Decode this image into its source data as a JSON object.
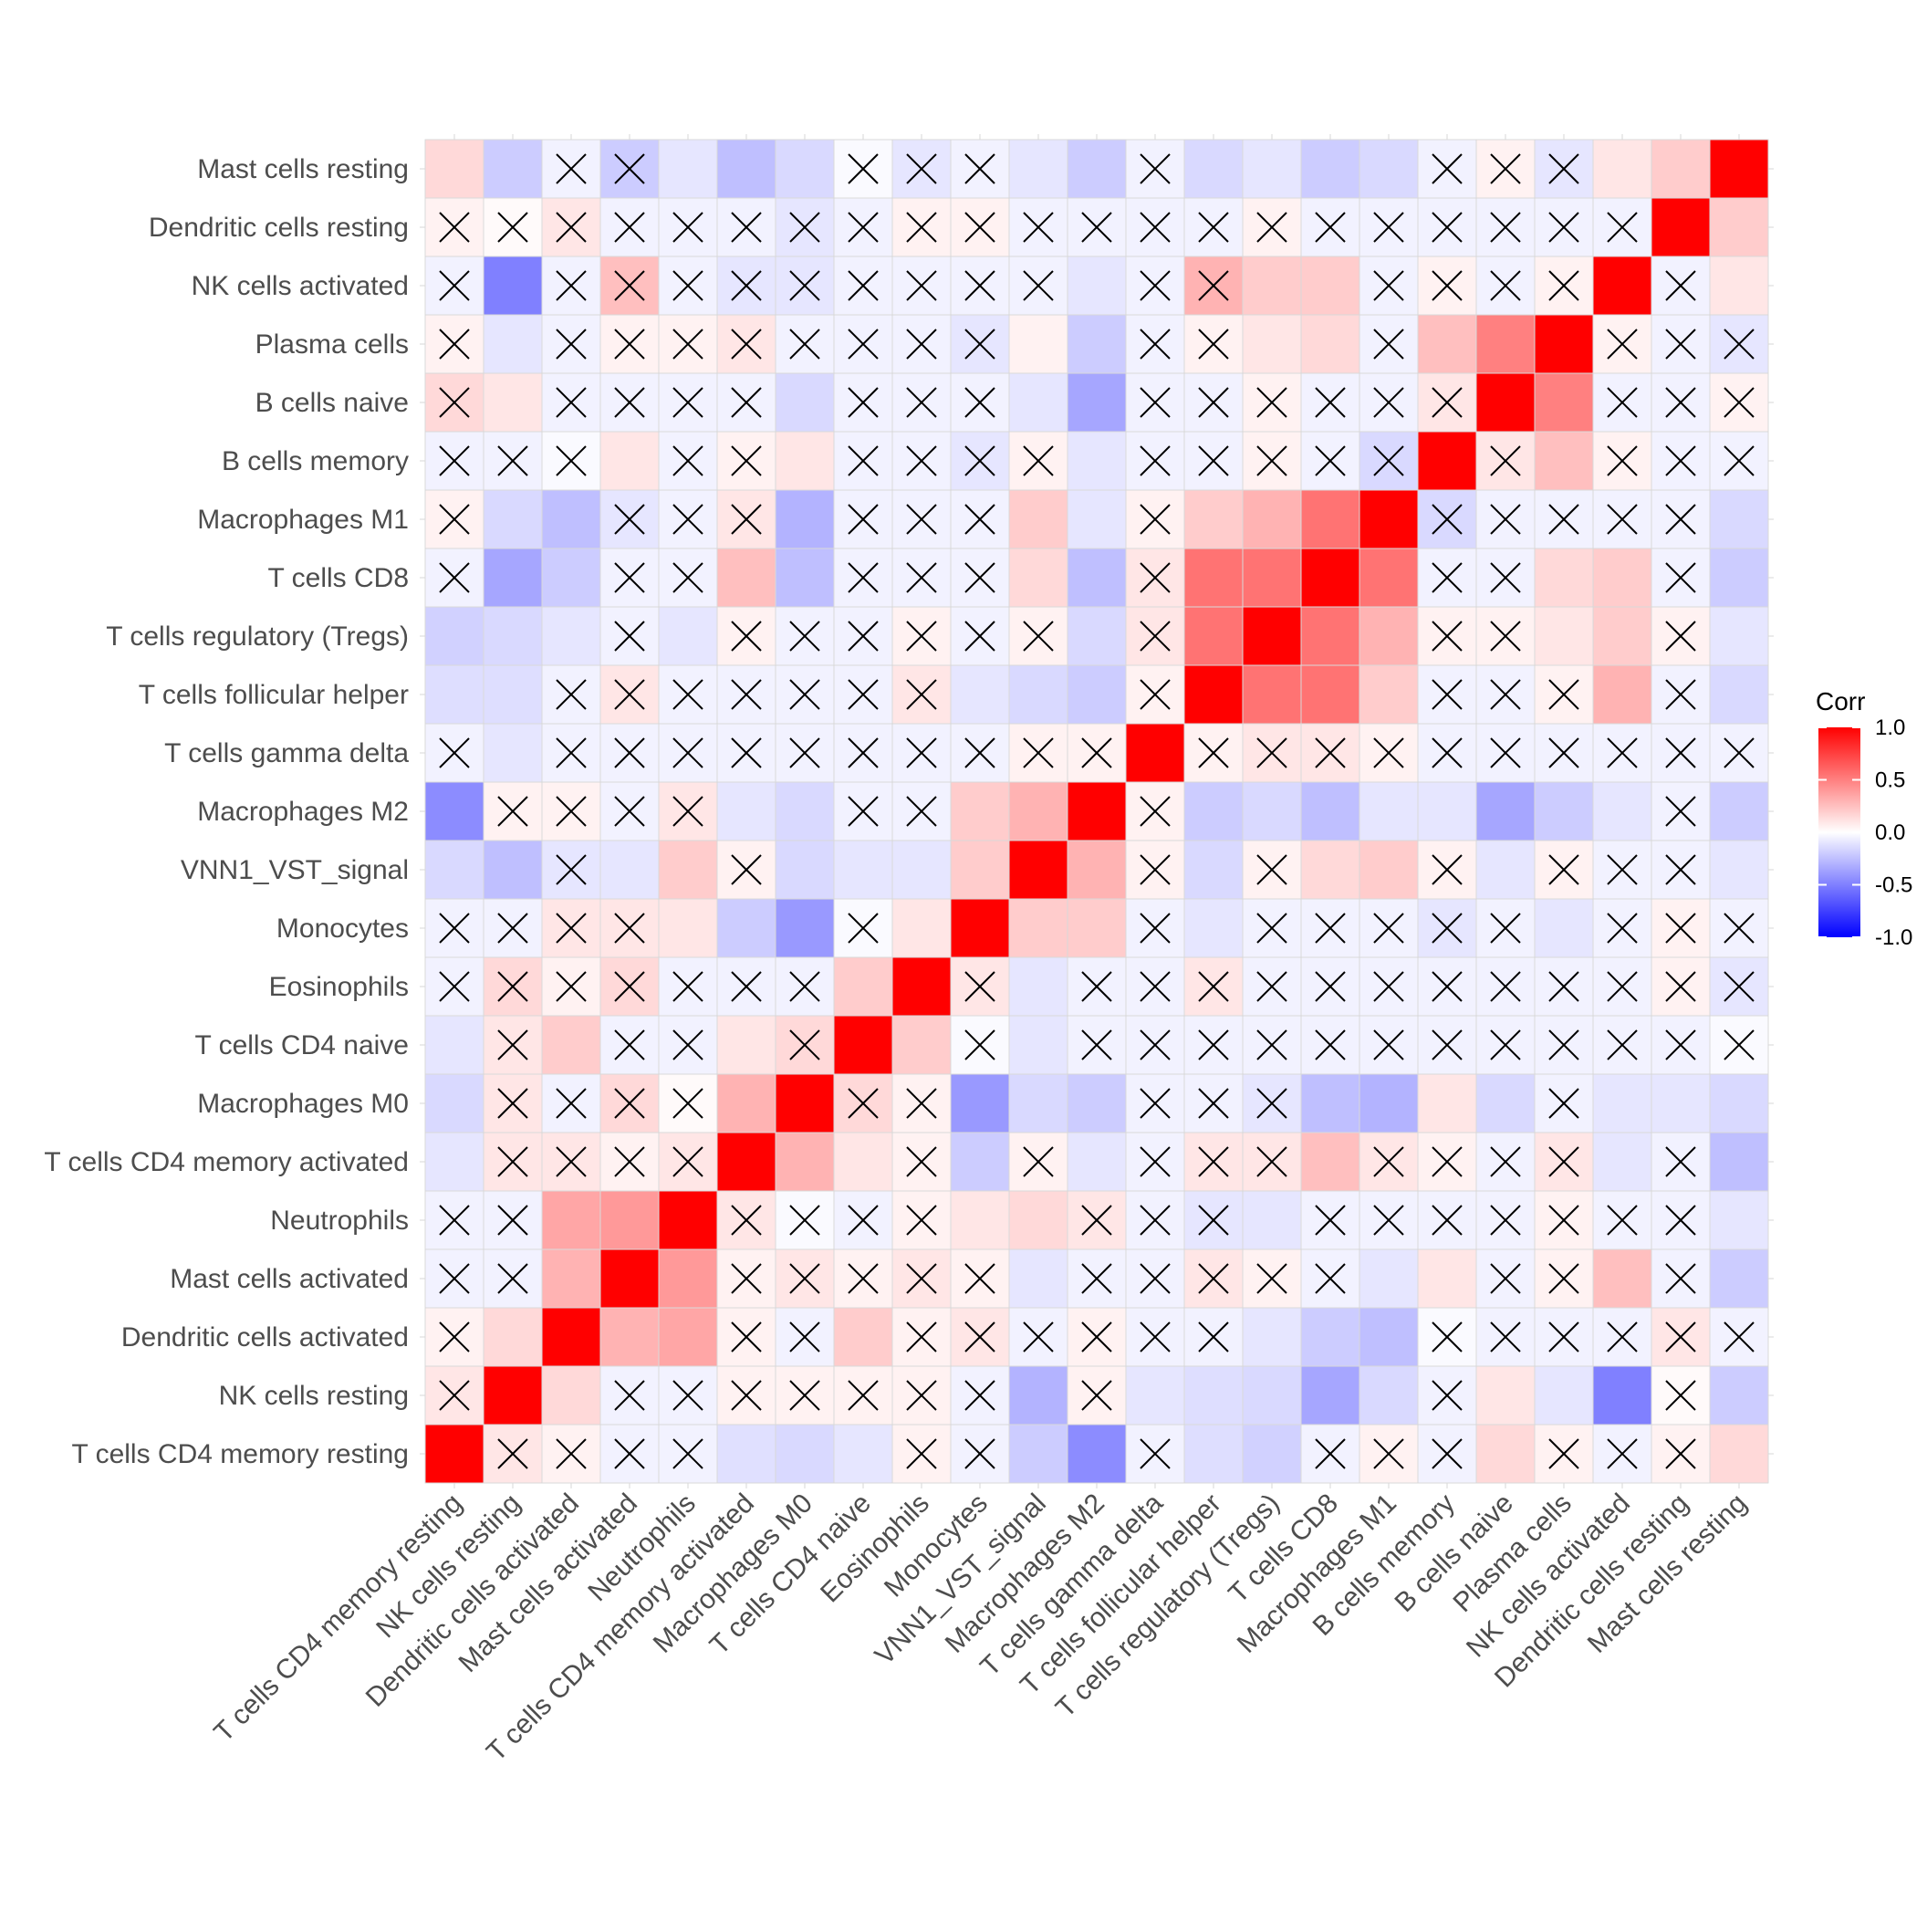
{
  "chart_data": {
    "type": "heatmap",
    "subtype": "lower-upper correlation matrix with insignificance crosses",
    "variables": [
      "T cells CD4 memory resting",
      "NK cells resting",
      "Dendritic cells activated",
      "Mast cells activated",
      "Neutrophils",
      "T cells CD4 memory activated",
      "Macrophages M0",
      "T cells CD4 naive",
      "Eosinophils",
      "Monocytes",
      "VNN1_VST_signal",
      "Macrophages M2",
      "T cells gamma delta",
      "T cells follicular helper",
      "T cells regulatory (Tregs)",
      "T cells CD8",
      "Macrophages M1",
      "B cells memory",
      "B cells naive",
      "Plasma cells",
      "NK cells activated",
      "Dendritic cells resting",
      "Mast cells resting"
    ],
    "matrix": [
      [
        1.0,
        0.1,
        0.05,
        -0.05,
        -0.05,
        -0.12,
        -0.15,
        -0.1,
        0.05,
        -0.05,
        -0.2,
        -0.45,
        -0.05,
        -0.13,
        -0.18,
        -0.05,
        0.05,
        -0.05,
        0.15,
        0.05,
        -0.05,
        0.05,
        0.15
      ],
      [
        0.1,
        1.0,
        0.15,
        -0.05,
        -0.05,
        0.05,
        0.05,
        0.05,
        0.05,
        -0.05,
        -0.3,
        0.05,
        -0.1,
        -0.13,
        -0.15,
        -0.35,
        -0.15,
        -0.05,
        0.1,
        -0.1,
        -0.5,
        0.02,
        -0.2
      ],
      [
        0.05,
        0.15,
        1.0,
        0.3,
        0.35,
        0.05,
        -0.05,
        0.2,
        0.05,
        0.1,
        -0.05,
        0.05,
        -0.05,
        -0.05,
        -0.1,
        -0.2,
        -0.25,
        -0.02,
        -0.05,
        -0.05,
        -0.05,
        0.1,
        -0.05
      ],
      [
        -0.05,
        -0.05,
        0.3,
        1.0,
        0.4,
        0.05,
        0.1,
        0.05,
        0.1,
        0.05,
        -0.1,
        -0.05,
        -0.05,
        0.1,
        0.05,
        -0.05,
        -0.1,
        0.1,
        -0.05,
        0.05,
        0.25,
        -0.05,
        -0.2
      ],
      [
        -0.05,
        -0.05,
        0.35,
        0.4,
        1.0,
        0.1,
        -0.02,
        -0.05,
        0.05,
        0.1,
        0.15,
        0.1,
        -0.05,
        -0.1,
        -0.1,
        -0.05,
        -0.05,
        -0.05,
        -0.05,
        0.05,
        -0.05,
        -0.05,
        -0.1
      ],
      [
        -0.1,
        0.1,
        0.1,
        0.05,
        0.1,
        1.0,
        0.3,
        0.1,
        0.05,
        -0.2,
        0.05,
        -0.1,
        -0.05,
        0.1,
        0.1,
        0.25,
        0.1,
        0.05,
        -0.05,
        0.1,
        -0.1,
        -0.05,
        -0.25
      ],
      [
        -0.15,
        0.1,
        -0.05,
        0.15,
        0.02,
        0.3,
        1.0,
        0.15,
        0.05,
        -0.4,
        -0.15,
        -0.2,
        -0.05,
        -0.05,
        -0.1,
        -0.25,
        -0.3,
        0.1,
        -0.15,
        -0.05,
        -0.1,
        -0.1,
        -0.15
      ],
      [
        -0.1,
        0.1,
        0.2,
        -0.05,
        -0.05,
        0.1,
        0.15,
        1.0,
        0.2,
        -0.02,
        -0.1,
        -0.05,
        -0.05,
        -0.05,
        -0.05,
        -0.05,
        -0.05,
        -0.05,
        -0.05,
        -0.05,
        -0.05,
        -0.05,
        -0.02
      ],
      [
        -0.05,
        0.15,
        0.05,
        0.15,
        -0.05,
        -0.05,
        -0.05,
        0.2,
        1.0,
        0.1,
        -0.1,
        -0.05,
        -0.05,
        0.1,
        -0.05,
        -0.05,
        -0.05,
        -0.05,
        -0.05,
        -0.05,
        -0.05,
        0.05,
        -0.1
      ],
      [
        -0.05,
        -0.05,
        0.1,
        0.1,
        0.1,
        -0.2,
        -0.4,
        -0.02,
        0.1,
        1.0,
        0.2,
        0.2,
        -0.05,
        -0.1,
        -0.05,
        -0.05,
        -0.05,
        -0.1,
        -0.05,
        -0.1,
        -0.05,
        0.05,
        -0.05
      ],
      [
        -0.15,
        -0.25,
        -0.1,
        -0.1,
        0.2,
        0.05,
        -0.15,
        -0.1,
        -0.1,
        0.2,
        1.0,
        0.3,
        0.05,
        -0.15,
        0.05,
        0.15,
        0.2,
        0.05,
        -0.1,
        0.05,
        -0.05,
        -0.05,
        -0.1
      ],
      [
        -0.45,
        0.05,
        0.05,
        -0.05,
        0.1,
        -0.1,
        -0.15,
        -0.05,
        -0.05,
        0.2,
        0.3,
        1.0,
        0.05,
        -0.2,
        -0.15,
        -0.25,
        -0.1,
        -0.1,
        -0.35,
        -0.2,
        -0.1,
        -0.05,
        -0.2
      ],
      [
        -0.05,
        -0.1,
        -0.05,
        -0.05,
        -0.05,
        -0.05,
        -0.05,
        -0.05,
        -0.05,
        -0.05,
        0.05,
        0.05,
        1.0,
        0.05,
        0.1,
        0.1,
        0.05,
        -0.05,
        -0.05,
        -0.05,
        -0.05,
        -0.05,
        -0.05
      ],
      [
        -0.13,
        -0.13,
        -0.05,
        0.1,
        -0.05,
        -0.05,
        -0.05,
        -0.05,
        0.1,
        -0.1,
        -0.15,
        -0.2,
        0.05,
        1.0,
        0.55,
        0.55,
        0.2,
        -0.05,
        -0.05,
        0.05,
        0.3,
        -0.05,
        -0.15
      ],
      [
        -0.18,
        -0.15,
        -0.1,
        -0.05,
        -0.1,
        0.05,
        -0.05,
        -0.05,
        0.05,
        -0.05,
        0.05,
        -0.15,
        0.1,
        0.55,
        1.0,
        0.55,
        0.3,
        0.05,
        0.05,
        0.1,
        0.2,
        0.05,
        -0.1
      ],
      [
        -0.05,
        -0.35,
        -0.2,
        -0.05,
        -0.05,
        0.25,
        -0.25,
        -0.05,
        -0.05,
        -0.05,
        0.15,
        -0.25,
        0.1,
        0.55,
        0.55,
        1.0,
        0.55,
        -0.05,
        -0.05,
        0.15,
        0.2,
        -0.05,
        -0.2
      ],
      [
        0.05,
        -0.15,
        -0.25,
        -0.1,
        -0.05,
        0.1,
        -0.3,
        -0.05,
        -0.05,
        -0.05,
        0.2,
        -0.1,
        0.05,
        0.2,
        0.3,
        0.55,
        1.0,
        -0.15,
        -0.05,
        -0.05,
        -0.05,
        -0.05,
        -0.15
      ],
      [
        -0.05,
        -0.05,
        -0.02,
        0.1,
        -0.05,
        0.05,
        0.1,
        -0.05,
        -0.05,
        -0.1,
        0.05,
        -0.1,
        -0.05,
        -0.05,
        0.05,
        -0.05,
        -0.15,
        1.0,
        0.1,
        0.25,
        0.05,
        -0.05,
        -0.05
      ],
      [
        0.15,
        0.1,
        -0.05,
        -0.05,
        -0.05,
        -0.05,
        -0.15,
        -0.05,
        -0.05,
        -0.05,
        -0.1,
        -0.35,
        -0.05,
        -0.05,
        0.05,
        -0.05,
        -0.05,
        0.1,
        1.0,
        0.5,
        -0.05,
        -0.05,
        0.05
      ],
      [
        0.05,
        -0.1,
        -0.05,
        0.05,
        0.05,
        0.1,
        -0.05,
        -0.05,
        -0.05,
        -0.1,
        0.05,
        -0.2,
        -0.05,
        0.05,
        0.1,
        0.15,
        -0.05,
        0.25,
        0.5,
        1.0,
        0.05,
        -0.05,
        -0.1
      ],
      [
        -0.05,
        -0.5,
        -0.05,
        0.25,
        -0.05,
        -0.1,
        -0.1,
        -0.05,
        -0.05,
        -0.05,
        -0.05,
        -0.1,
        -0.05,
        0.3,
        0.2,
        0.2,
        -0.05,
        0.05,
        -0.05,
        0.05,
        1.0,
        -0.05,
        0.1
      ],
      [
        0.05,
        0.02,
        0.1,
        -0.05,
        -0.05,
        -0.05,
        -0.1,
        -0.05,
        0.05,
        0.05,
        -0.05,
        -0.05,
        -0.05,
        -0.05,
        0.05,
        -0.05,
        -0.05,
        -0.05,
        -0.05,
        -0.05,
        -0.05,
        1.0,
        0.2
      ],
      [
        0.15,
        -0.2,
        -0.05,
        -0.2,
        -0.1,
        -0.25,
        -0.15,
        -0.02,
        -0.1,
        -0.05,
        -0.1,
        -0.2,
        -0.05,
        -0.15,
        -0.1,
        -0.2,
        -0.15,
        -0.05,
        0.05,
        -0.1,
        0.1,
        0.2,
        1.0
      ]
    ],
    "insignificant": [
      [
        0,
        1,
        1,
        1,
        1,
        0,
        0,
        0,
        1,
        1,
        0,
        0,
        1,
        0,
        0,
        1,
        1,
        1,
        0,
        1,
        1,
        1,
        0
      ],
      [
        1,
        0,
        0,
        1,
        1,
        1,
        1,
        1,
        1,
        1,
        0,
        1,
        0,
        0,
        0,
        0,
        0,
        1,
        0,
        0,
        0,
        1,
        0
      ],
      [
        1,
        0,
        0,
        0,
        0,
        1,
        1,
        0,
        1,
        1,
        1,
        1,
        1,
        1,
        0,
        0,
        0,
        1,
        1,
        1,
        1,
        1,
        1
      ],
      [
        1,
        1,
        0,
        0,
        0,
        1,
        1,
        1,
        1,
        1,
        0,
        1,
        1,
        1,
        1,
        1,
        0,
        0,
        1,
        1,
        0,
        1,
        0
      ],
      [
        1,
        1,
        0,
        0,
        0,
        1,
        1,
        1,
        1,
        0,
        0,
        1,
        1,
        1,
        0,
        1,
        1,
        1,
        1,
        1,
        1,
        1,
        0
      ],
      [
        0,
        1,
        1,
        1,
        1,
        0,
        0,
        0,
        1,
        0,
        1,
        0,
        1,
        1,
        1,
        0,
        1,
        1,
        1,
        1,
        0,
        1,
        0
      ],
      [
        0,
        1,
        1,
        1,
        1,
        0,
        0,
        1,
        1,
        0,
        0,
        0,
        1,
        1,
        1,
        0,
        0,
        0,
        0,
        1,
        0,
        0,
        0
      ],
      [
        0,
        1,
        0,
        1,
        1,
        0,
        1,
        0,
        0,
        1,
        0,
        1,
        1,
        1,
        1,
        1,
        1,
        1,
        1,
        1,
        1,
        1,
        1
      ],
      [
        1,
        1,
        1,
        1,
        1,
        1,
        1,
        0,
        0,
        1,
        0,
        1,
        1,
        1,
        1,
        1,
        1,
        1,
        1,
        1,
        1,
        1,
        1
      ],
      [
        1,
        1,
        1,
        1,
        0,
        0,
        0,
        1,
        0,
        0,
        0,
        0,
        1,
        0,
        1,
        1,
        1,
        1,
        1,
        0,
        1,
        1,
        1
      ],
      [
        0,
        0,
        1,
        0,
        0,
        1,
        0,
        0,
        0,
        0,
        0,
        0,
        1,
        0,
        1,
        0,
        0,
        1,
        0,
        1,
        1,
        1,
        0
      ],
      [
        0,
        1,
        1,
        1,
        1,
        0,
        0,
        1,
        1,
        0,
        0,
        0,
        1,
        0,
        0,
        0,
        0,
        0,
        0,
        0,
        0,
        1,
        0
      ],
      [
        1,
        0,
        1,
        1,
        1,
        1,
        1,
        1,
        1,
        1,
        1,
        1,
        0,
        1,
        1,
        1,
        1,
        1,
        1,
        1,
        1,
        1,
        1
      ],
      [
        0,
        0,
        1,
        1,
        1,
        1,
        1,
        1,
        1,
        0,
        0,
        0,
        1,
        0,
        0,
        0,
        0,
        1,
        1,
        1,
        0,
        1,
        0
      ],
      [
        0,
        0,
        0,
        1,
        0,
        1,
        1,
        1,
        1,
        1,
        1,
        0,
        1,
        0,
        0,
        0,
        0,
        1,
        1,
        0,
        0,
        1,
        0
      ],
      [
        1,
        0,
        0,
        1,
        1,
        0,
        0,
        1,
        1,
        1,
        0,
        0,
        1,
        0,
        0,
        0,
        0,
        1,
        1,
        0,
        0,
        1,
        0
      ],
      [
        1,
        0,
        0,
        1,
        1,
        1,
        0,
        1,
        1,
        1,
        0,
        0,
        1,
        0,
        0,
        0,
        0,
        1,
        1,
        1,
        1,
        1,
        0
      ],
      [
        1,
        1,
        1,
        0,
        1,
        1,
        0,
        1,
        1,
        1,
        1,
        0,
        1,
        1,
        1,
        1,
        1,
        0,
        1,
        0,
        1,
        1,
        1
      ],
      [
        1,
        0,
        1,
        1,
        1,
        1,
        0,
        1,
        1,
        1,
        0,
        0,
        1,
        1,
        1,
        1,
        1,
        1,
        0,
        0,
        1,
        1,
        1
      ],
      [
        1,
        0,
        1,
        1,
        1,
        1,
        1,
        1,
        1,
        1,
        0,
        0,
        1,
        1,
        0,
        0,
        1,
        0,
        0,
        0,
        1,
        1,
        1
      ],
      [
        1,
        0,
        1,
        1,
        1,
        1,
        1,
        1,
        1,
        1,
        1,
        0,
        1,
        1,
        0,
        0,
        1,
        1,
        1,
        1,
        0,
        1,
        0
      ],
      [
        1,
        1,
        1,
        1,
        1,
        1,
        1,
        1,
        1,
        1,
        1,
        1,
        1,
        1,
        1,
        1,
        1,
        1,
        1,
        1,
        1,
        0,
        0
      ],
      [
        0,
        0,
        1,
        1,
        0,
        0,
        0,
        1,
        1,
        1,
        0,
        0,
        1,
        0,
        0,
        0,
        0,
        1,
        1,
        1,
        0,
        0,
        0
      ]
    ],
    "legend": {
      "title": "Corr",
      "ticks": [
        "1.0",
        "0.5",
        "0.0",
        "-0.5",
        "-1.0"
      ],
      "range": [
        -1,
        1
      ],
      "colors": {
        "low": "#0000ff",
        "mid": "#ffffff",
        "high": "#ff0000"
      },
      "placement": "right"
    },
    "grid": true,
    "title": "",
    "xlabel": "",
    "ylabel": ""
  }
}
